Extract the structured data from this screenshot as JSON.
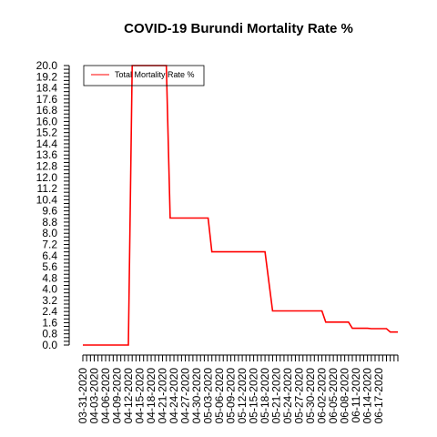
{
  "chart_data": {
    "type": "line",
    "title": "COVID-19 Burundi Mortality Rate %",
    "xlabel": "",
    "ylabel": "",
    "ylim": [
      0,
      20
    ],
    "yticks": [
      "0.0",
      "0.8",
      "1.6",
      "2.4",
      "3.2",
      "4.0",
      "4.8",
      "5.6",
      "6.4",
      "7.2",
      "8.0",
      "8.8",
      "9.6",
      "10.4",
      "11.2",
      "12.0",
      "12.8",
      "13.6",
      "14.4",
      "15.2",
      "16.0",
      "16.8",
      "17.6",
      "18.4",
      "19.2",
      "20.0"
    ],
    "xtick_labels": [
      "03-31-2020",
      "04-03-2020",
      "04-06-2020",
      "04-09-2020",
      "04-12-2020",
      "04-15-2020",
      "04-18-2020",
      "04-21-2020",
      "04-24-2020",
      "04-27-2020",
      "04-30-2020",
      "05-03-2020",
      "05-06-2020",
      "05-09-2020",
      "05-12-2020",
      "05-15-2020",
      "05-18-2020",
      "05-21-2020",
      "05-24-2020",
      "05-27-2020",
      "05-30-2020",
      "06-02-2020",
      "06-05-2020",
      "06-08-2020",
      "06-11-2020",
      "06-14-2020",
      "06-17-2020"
    ],
    "legend": {
      "position": "top-left",
      "entries": [
        "Total Mortality Rate %"
      ]
    },
    "grid": false,
    "series": [
      {
        "name": "Total Mortality Rate %",
        "color": "#ff0000",
        "points": [
          {
            "x": "03-31-2020",
            "y": 0.0
          },
          {
            "x": "04-12-2020",
            "y": 0.0
          },
          {
            "x": "04-13-2020",
            "y": 20.0
          },
          {
            "x": "04-22-2020",
            "y": 20.0
          },
          {
            "x": "04-23-2020",
            "y": 9.09
          },
          {
            "x": "05-03-2020",
            "y": 9.09
          },
          {
            "x": "05-04-2020",
            "y": 6.67
          },
          {
            "x": "05-18-2020",
            "y": 6.67
          },
          {
            "x": "05-20-2020",
            "y": 2.44
          },
          {
            "x": "06-02-2020",
            "y": 2.44
          },
          {
            "x": "06-03-2020",
            "y": 1.64
          },
          {
            "x": "06-09-2020",
            "y": 1.64
          },
          {
            "x": "06-10-2020",
            "y": 1.2
          },
          {
            "x": "06-14-2020",
            "y": 1.2
          },
          {
            "x": "06-15-2020",
            "y": 1.17
          },
          {
            "x": "06-19-2020",
            "y": 1.17
          },
          {
            "x": "06-20-2020",
            "y": 0.93
          },
          {
            "x": "06-22-2020",
            "y": 0.93
          }
        ]
      }
    ]
  }
}
